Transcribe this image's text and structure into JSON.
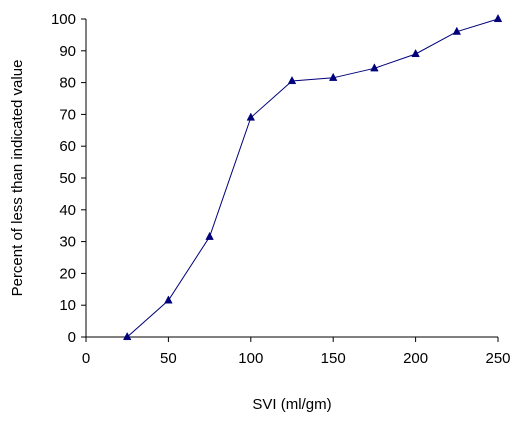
{
  "chart_data": {
    "type": "line",
    "xlabel": "SVI  (ml/gm)",
    "ylabel": "Percent of less than indicated value",
    "xlim": [
      0,
      250
    ],
    "ylim": [
      0,
      100
    ],
    "x_ticks": [
      0,
      50,
      100,
      150,
      200,
      250
    ],
    "y_ticks": [
      0,
      10,
      20,
      30,
      40,
      50,
      60,
      70,
      80,
      90,
      100
    ],
    "x_tick_labels": [
      "0",
      "50",
      "100",
      "150",
      "200",
      "250"
    ],
    "y_tick_labels": [
      "0",
      "10",
      "20",
      "30",
      "40",
      "50",
      "60",
      "70",
      "80",
      "90",
      "100"
    ],
    "grid": false,
    "series": [
      {
        "color": "#00007a",
        "marker": "triangle",
        "x": [
          25,
          50,
          75,
          100,
          125,
          150,
          175,
          200,
          225,
          250
        ],
        "y": [
          0,
          11.5,
          31.5,
          69,
          80.5,
          81.5,
          84.5,
          89,
          96,
          100
        ]
      }
    ]
  }
}
